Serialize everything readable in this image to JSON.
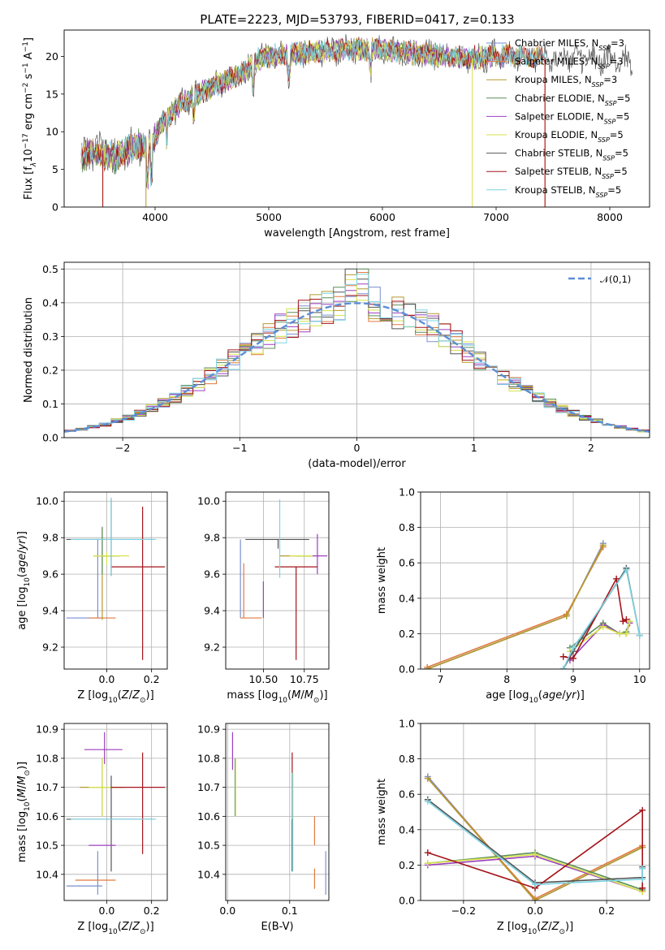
{
  "figure_title": "PLATE=2223, MJD=53793, FIBERID=0417, z=0.133",
  "models": [
    {
      "label": "Chabrier MILES, N",
      "sub": "SSP",
      "tail": "=3",
      "color": "#7a8fd0"
    },
    {
      "label": "Salpeter MILES, N",
      "sub": "SSP",
      "tail": "=3",
      "color": "#e07a3f"
    },
    {
      "label": "Kroupa MILES, N",
      "sub": "SSP",
      "tail": "=3",
      "color": "#b49a2c"
    },
    {
      "label": "Chabrier ELODIE, N",
      "sub": "SSP",
      "tail": "=5",
      "color": "#5c8d5a"
    },
    {
      "label": "Salpeter ELODIE, N",
      "sub": "SSP",
      "tail": "=5",
      "color": "#9c3fbe"
    },
    {
      "label": "Kroupa ELODIE, N",
      "sub": "SSP",
      "tail": "=5",
      "color": "#d7e24a"
    },
    {
      "label": "Chabrier STELIB, N",
      "sub": "SSP",
      "tail": "=5",
      "color": "#555555"
    },
    {
      "label": "Salpeter STELIB, N",
      "sub": "SSP",
      "tail": "=5",
      "color": "#a3141b"
    },
    {
      "label": "Kroupa STELIB, N",
      "sub": "SSP",
      "tail": "=5",
      "color": "#7dd3e3"
    }
  ],
  "chart_data": [
    {
      "id": "spectrum",
      "type": "line",
      "title": "PLATE=2223, MJD=53793, FIBERID=0417, z=0.133",
      "xlabel": "wavelength [Angstrom, rest frame]",
      "ylabel_parts": [
        "Flux [f",
        "λ",
        "10",
        "−17",
        " erg cm",
        "−2",
        " s",
        "−1",
        " A",
        "−1",
        "]"
      ],
      "xlim": [
        3200,
        8350
      ],
      "ylim": [
        0,
        23.5
      ],
      "xticks": [
        4000,
        5000,
        6000,
        7000,
        8000
      ],
      "yticks": [
        0,
        5,
        10,
        15,
        20
      ],
      "grid": false,
      "legend_position": "top-right",
      "continuum": {
        "x": [
          3350,
          3450,
          3550,
          3650,
          3750,
          3850,
          3950,
          4050,
          4150,
          4250,
          4350,
          4500,
          4650,
          4800,
          4900,
          5000,
          5200,
          5400,
          5600,
          5800,
          6000,
          6200,
          6400,
          6600,
          6800,
          7000,
          7200,
          7400,
          7600,
          7800,
          8000,
          8200,
          8300
        ],
        "y": [
          6.5,
          7.5,
          7.0,
          6.5,
          7.5,
          8.5,
          7.5,
          11.0,
          12.5,
          14.0,
          14.8,
          16.0,
          17.0,
          18.0,
          19.5,
          20.0,
          20.3,
          20.6,
          20.8,
          21.0,
          20.8,
          20.5,
          20.3,
          20.0,
          19.8,
          20.2,
          20.1,
          19.9,
          19.8,
          19.6,
          19.5,
          19.3,
          19.2
        ]
      },
      "dropouts": [
        {
          "series": "Salpeter MILES",
          "x": [
            3540,
            7430
          ],
          "y_min": 0
        },
        {
          "series": "Kroupa MILES",
          "x": [
            3920
          ],
          "y_min": 0
        },
        {
          "series": "Kroupa ELODIE",
          "x": [
            6790
          ],
          "y_min": 0
        },
        {
          "series": "Salpeter STELIB",
          "x": [
            3540,
            7430
          ],
          "y_min": 0
        }
      ]
    },
    {
      "id": "residuals",
      "type": "histogram",
      "xlabel": "(data-model)/error",
      "ylabel": "Normed distribution",
      "xlim": [
        -2.5,
        2.5
      ],
      "ylim": [
        0,
        0.52
      ],
      "xticks": [
        -2,
        -1,
        0,
        1,
        2
      ],
      "yticks": [
        0.0,
        0.1,
        0.2,
        0.3,
        0.4,
        0.5
      ],
      "grid": true,
      "bin_width": 0.1,
      "bin_start": -2.5,
      "reference_curve": {
        "name": "𝒩(0,1)",
        "type": "normal",
        "mean": 0,
        "sd": 1
      },
      "legend_position": "top-right"
    },
    {
      "id": "age-vs-Z",
      "type": "scatter",
      "xlabel": "Z [log10(Z/Z⊙)]",
      "ylabel": "age  [log10(age/yr)]",
      "xlim": [
        -0.19,
        0.27
      ],
      "ylim": [
        9.08,
        10.05
      ],
      "xticks": [
        0.0,
        0.2
      ],
      "yticks": [
        9.2,
        9.4,
        9.6,
        9.8,
        10.0
      ],
      "grid": true,
      "points": [
        {
          "series": "Chabrier MILES",
          "x": -0.04,
          "y": 9.36,
          "xerr": [
            0.14,
            0.02
          ],
          "yerr": [
            0.0,
            0.43
          ]
        },
        {
          "series": "Salpeter MILES",
          "x": -0.02,
          "y": 9.36,
          "xerr": [
            0.06,
            0.06
          ],
          "yerr": [
            0.0,
            0.0
          ]
        },
        {
          "series": "Kroupa MILES",
          "x": -0.02,
          "y": 9.7,
          "xerr": [
            0.04,
            0.06
          ],
          "yerr": [
            0.35,
            0.15
          ]
        },
        {
          "series": "Chabrier ELODIE",
          "x": -0.02,
          "y": 9.7,
          "xerr": [
            0.01,
            0.08
          ],
          "yerr": [
            0.1,
            0.16
          ]
        },
        {
          "series": "Salpeter ELODIE",
          "x": -0.02,
          "y": 9.7,
          "xerr": [
            0.0,
            0.0
          ],
          "yerr": [
            0.0,
            0.0
          ]
        },
        {
          "series": "Kroupa ELODIE",
          "x": 0.0,
          "y": 9.7,
          "xerr": [
            0.06,
            0.1
          ],
          "yerr": [
            0.05,
            0.02
          ]
        },
        {
          "series": "Chabrier STELIB",
          "x": 0.02,
          "y": 9.79,
          "xerr": [
            0.2,
            0.19
          ],
          "yerr": [
            0.2,
            0.22
          ]
        },
        {
          "series": "Salpeter STELIB",
          "x": 0.16,
          "y": 9.64,
          "xerr": [
            0.14,
            0.1
          ],
          "yerr": [
            0.51,
            0.33
          ]
        },
        {
          "series": "Kroupa STELIB",
          "x": 0.02,
          "y": 9.79,
          "xerr": [
            0.18,
            0.2
          ],
          "yerr": [
            0.2,
            0.23
          ]
        }
      ]
    },
    {
      "id": "age-vs-mass",
      "type": "scatter",
      "xlabel": "mass [log10(M/M⊙)]",
      "ylabel": "",
      "xlim": [
        10.27,
        10.9
      ],
      "ylim": [
        9.08,
        10.05
      ],
      "xticks": [
        10.5,
        10.75
      ],
      "yticks": [
        9.2,
        9.4,
        9.6,
        9.8,
        10.0
      ],
      "grid": true,
      "points": [
        {
          "series": "Chabrier MILES",
          "x": 10.36,
          "y": 9.36,
          "xerr": [
            0.0,
            0.0
          ],
          "yerr": [
            0.0,
            0.43
          ]
        },
        {
          "series": "Salpeter MILES",
          "x": 10.38,
          "y": 9.36,
          "xerr": [
            0.0,
            0.0
          ],
          "yerr": [
            0.0,
            0.3
          ]
        },
        {
          "series": "Kroupa MILES",
          "x": 10.7,
          "y": 9.7,
          "xerr": [
            0.1,
            0.1
          ],
          "yerr": [
            0.0,
            0.0
          ]
        },
        {
          "series": "Chabrier ELODIE",
          "x": 10.7,
          "y": 9.7,
          "xerr": [
            0.0,
            0.1
          ],
          "yerr": [
            0.0,
            0.0
          ]
        },
        {
          "series": "Salpeter ELODIE",
          "x": 10.83,
          "y": 9.7,
          "xerr": [
            0.03,
            0.06
          ],
          "yerr": [
            0.1,
            0.12
          ]
        },
        {
          "series": "Kroupa ELODIE",
          "x": 10.7,
          "y": 9.7,
          "xerr": [
            0.04,
            0.1
          ],
          "yerr": [
            0.0,
            0.0
          ]
        },
        {
          "series": "Chabrier STELIB",
          "x": 10.59,
          "y": 9.79,
          "xerr": [
            0.2,
            0.19
          ],
          "yerr": [
            0.05,
            0.0
          ]
        },
        {
          "series": "Salpeter STELIB",
          "x": 10.7,
          "y": 9.64,
          "xerr": [
            0.13,
            0.13
          ],
          "yerr": [
            0.51,
            0.0
          ]
        },
        {
          "series": "Kroupa STELIB",
          "x": 10.6,
          "y": 9.79,
          "xerr": [
            0.0,
            0.0
          ],
          "yerr": [
            0.21,
            0.22
          ]
        },
        {
          "series": "Salpeter MILES",
          "x": 10.49,
          "y": 9.36,
          "xerr": [
            0.13,
            0.0
          ],
          "yerr": [
            0.0,
            0.0
          ]
        },
        {
          "series": "Salpeter ELODIE",
          "x": 10.5,
          "y": 9.36,
          "xerr": [
            0.0,
            0.0
          ],
          "yerr": [
            0.0,
            0.2
          ]
        }
      ]
    },
    {
      "id": "mass-weight-vs-age",
      "type": "line",
      "xlabel": "age  [log10(age/yr)]",
      "ylabel": "mass weight",
      "xlim": [
        6.7,
        10.15
      ],
      "ylim": [
        0.0,
        1.0
      ],
      "xticks": [
        7,
        8,
        9,
        10
      ],
      "yticks": [
        0.0,
        0.2,
        0.4,
        0.6,
        0.8,
        1.0
      ],
      "grid": true,
      "series": [
        {
          "name": "Chabrier MILES",
          "x": [
            6.8,
            8.9,
            9.45
          ],
          "y": [
            0.0,
            0.3,
            0.71
          ]
        },
        {
          "name": "Salpeter MILES",
          "x": [
            6.8,
            8.9,
            9.45
          ],
          "y": [
            0.01,
            0.31,
            0.69
          ]
        },
        {
          "name": "Kroupa MILES",
          "x": [
            6.8,
            8.9,
            9.45
          ],
          "y": [
            0.0,
            0.3,
            0.7
          ]
        },
        {
          "name": "Chabrier ELODIE",
          "x": [
            8.95,
            9.45,
            9.7,
            9.8,
            9.85
          ],
          "y": [
            0.12,
            0.26,
            0.2,
            0.21,
            0.27
          ]
        },
        {
          "name": "Salpeter ELODIE",
          "x": [
            8.95,
            9.45,
            9.7,
            9.8,
            9.85
          ],
          "y": [
            0.05,
            0.25,
            0.2,
            0.2,
            0.26
          ]
        },
        {
          "name": "Kroupa ELODIE",
          "x": [
            8.95,
            9.45,
            9.7,
            9.8,
            9.85
          ],
          "y": [
            0.1,
            0.24,
            0.2,
            0.2,
            0.27
          ]
        },
        {
          "name": "Chabrier STELIB",
          "x": [
            8.85,
            9.0,
            9.8,
            10.0
          ],
          "y": [
            0.0,
            0.1,
            0.57,
            0.19
          ]
        },
        {
          "name": "Salpeter STELIB",
          "x": [
            8.85,
            9.0,
            9.65,
            9.75,
            9.8
          ],
          "y": [
            0.07,
            0.06,
            0.51,
            0.27,
            0.28
          ]
        },
        {
          "name": "Kroupa STELIB",
          "x": [
            8.85,
            9.0,
            9.8,
            10.0
          ],
          "y": [
            0.0,
            0.12,
            0.56,
            0.19
          ]
        }
      ]
    },
    {
      "id": "mass-vs-Z",
      "type": "scatter",
      "xlabel": "Z [log10(Z/Z⊙)]",
      "ylabel": "mass [log10(M/M⊙)]",
      "xlim": [
        -0.19,
        0.27
      ],
      "ylim": [
        10.31,
        10.92
      ],
      "xticks": [
        0.0,
        0.2
      ],
      "yticks": [
        10.4,
        10.5,
        10.6,
        10.7,
        10.8,
        10.9
      ],
      "grid": true,
      "points": [
        {
          "series": "Chabrier MILES",
          "x": -0.04,
          "y": 10.36,
          "xerr": [
            0.14,
            0.02
          ],
          "yerr": [
            0.03,
            0.12
          ]
        },
        {
          "series": "Salpeter MILES",
          "x": -0.02,
          "y": 10.38,
          "xerr": [
            0.12,
            0.06
          ],
          "yerr": [
            0.0,
            0.0
          ]
        },
        {
          "series": "Kroupa MILES",
          "x": -0.02,
          "y": 10.7,
          "xerr": [
            0.1,
            0.1
          ],
          "yerr": [
            0.0,
            0.0
          ]
        },
        {
          "series": "Chabrier ELODIE",
          "x": -0.02,
          "y": 10.7,
          "xerr": [
            0.0,
            0.0
          ],
          "yerr": [
            0.1,
            0.1
          ]
        },
        {
          "series": "Salpeter ELODIE",
          "x": -0.01,
          "y": 10.83,
          "xerr": [
            0.09,
            0.08
          ],
          "yerr": [
            0.05,
            0.06
          ]
        },
        {
          "series": "Kroupa ELODIE",
          "x": -0.02,
          "y": 10.7,
          "xerr": [
            0.06,
            0.08
          ],
          "yerr": [
            0.1,
            0.1
          ]
        },
        {
          "series": "Chabrier STELIB",
          "x": 0.02,
          "y": 10.59,
          "xerr": [
            0.2,
            0.19
          ],
          "yerr": [
            0.18,
            0.15
          ]
        },
        {
          "series": "Salpeter STELIB",
          "x": 0.16,
          "y": 10.7,
          "xerr": [
            0.14,
            0.1
          ],
          "yerr": [
            0.23,
            0.12
          ]
        },
        {
          "series": "Kroupa STELIB",
          "x": 0.02,
          "y": 10.59,
          "xerr": [
            0.18,
            0.2
          ],
          "yerr": [
            0.0,
            0.0
          ]
        },
        {
          "series": "Salpeter ELODIE",
          "x": -0.02,
          "y": 10.5,
          "xerr": [
            0.06,
            0.06
          ],
          "yerr": [
            0.0,
            0.0
          ]
        }
      ]
    },
    {
      "id": "mass-vs-EBV",
      "type": "scatter",
      "xlabel": "E(B-V)",
      "ylabel": "",
      "xlim": [
        -0.003,
        0.163
      ],
      "ylim": [
        10.31,
        10.92
      ],
      "xticks": [
        0.0,
        0.1
      ],
      "yticks": [
        10.4,
        10.5,
        10.6,
        10.7,
        10.8,
        10.9
      ],
      "grid": true,
      "points": [
        {
          "series": "Chabrier MILES",
          "x": 0.158,
          "y": 10.4,
          "yerr": [
            0.07,
            0.08
          ]
        },
        {
          "series": "Salpeter MILES",
          "x": 0.14,
          "y": 10.42,
          "yerr": [
            0.07,
            0.0
          ]
        },
        {
          "series": "Kroupa MILES",
          "x": 0.104,
          "y": 10.6,
          "yerr": [
            0.19,
            0.15
          ]
        },
        {
          "series": "Chabrier ELODIE",
          "x": 0.012,
          "y": 10.7,
          "yerr": [
            0.1,
            0.1
          ]
        },
        {
          "series": "Salpeter ELODIE",
          "x": 0.008,
          "y": 10.83,
          "yerr": [
            0.07,
            0.06
          ]
        },
        {
          "series": "Kroupa ELODIE",
          "x": 0.013,
          "y": 10.7,
          "yerr": [
            0.1,
            0.1
          ]
        },
        {
          "series": "Chabrier STELIB",
          "x": 0.104,
          "y": 10.55,
          "yerr": [
            0.14,
            0.04
          ]
        },
        {
          "series": "Salpeter STELIB",
          "x": 0.104,
          "y": 10.8,
          "yerr": [
            0.05,
            0.02
          ]
        },
        {
          "series": "Kroupa STELIB",
          "x": 0.105,
          "y": 10.58,
          "yerr": [
            0.17,
            0.17
          ]
        },
        {
          "series": "Salpeter MILES",
          "x": 0.14,
          "y": 10.55,
          "yerr": [
            0.05,
            0.05
          ]
        }
      ]
    },
    {
      "id": "mass-weight-vs-Z",
      "type": "line",
      "xlabel": "Z [log10(Z/Z⊙)]",
      "ylabel": "mass weight",
      "xlim": [
        -0.32,
        0.32
      ],
      "ylim": [
        0.0,
        1.0
      ],
      "xticks": [
        -0.2,
        0.0,
        0.2
      ],
      "yticks": [
        0.0,
        0.2,
        0.4,
        0.6,
        0.8,
        1.0
      ],
      "grid": true,
      "series": [
        {
          "name": "Chabrier MILES",
          "x": [
            -0.3,
            0.0,
            0.3
          ],
          "y": [
            0.7,
            0.0,
            0.3
          ]
        },
        {
          "name": "Salpeter MILES",
          "x": [
            -0.3,
            0.0,
            0.3
          ],
          "y": [
            0.69,
            0.01,
            0.31
          ]
        },
        {
          "name": "Kroupa MILES",
          "x": [
            -0.3,
            0.0,
            0.3
          ],
          "y": [
            0.69,
            0.0,
            0.3
          ]
        },
        {
          "name": "Chabrier ELODIE",
          "x": [
            -0.3,
            0.0,
            0.3
          ],
          "y": [
            0.21,
            0.27,
            0.06
          ]
        },
        {
          "name": "Salpeter ELODIE",
          "x": [
            -0.3,
            0.0,
            0.3
          ],
          "y": [
            0.2,
            0.25,
            0.05
          ]
        },
        {
          "name": "Kroupa ELODIE",
          "x": [
            -0.3,
            0.0,
            0.3
          ],
          "y": [
            0.21,
            0.26,
            0.05
          ]
        },
        {
          "name": "Chabrier STELIB",
          "x": [
            -0.3,
            0.0,
            0.3,
            0.3
          ],
          "y": [
            0.57,
            0.1,
            0.13,
            0.19
          ]
        },
        {
          "name": "Salpeter STELIB",
          "x": [
            -0.3,
            0.0,
            0.3,
            0.3
          ],
          "y": [
            0.27,
            0.07,
            0.51,
            0.07
          ]
        },
        {
          "name": "Kroupa STELIB",
          "x": [
            -0.3,
            0.0,
            0.3,
            0.3
          ],
          "y": [
            0.56,
            0.09,
            0.12,
            0.18
          ]
        }
      ]
    }
  ]
}
